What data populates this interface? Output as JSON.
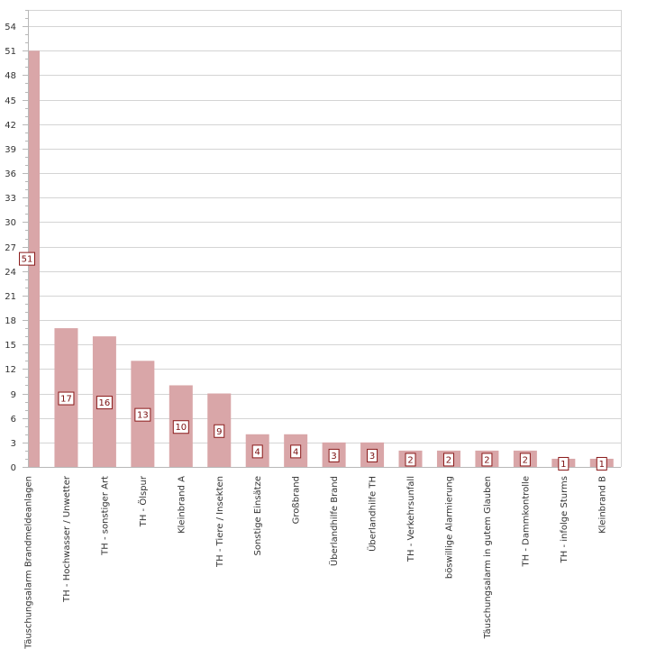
{
  "chart_data": {
    "type": "bar",
    "categories": [
      "Täuschungsalarm Brandmeldeanlagen",
      "TH - Hochwasser / Unwetter",
      "TH - sonstiger Art",
      "TH - Ölspur",
      "Kleinbrand A",
      "TH - Tiere / Insekten",
      "Sonstige Einsätze",
      "Großbrand",
      "Überlandhilfe Brand",
      "Überlandhilfe TH",
      "TH - Verkehrsunfall",
      "böswillige Alarmierung",
      "Täuschungsalarm in gutem Glauben",
      "TH - Dammkontrolle",
      "TH - infolge Sturms",
      "Kleinbrand B"
    ],
    "values": [
      51,
      17,
      16,
      13,
      10,
      9,
      4,
      4,
      3,
      3,
      2,
      2,
      2,
      2,
      1,
      1
    ],
    "ylim": [
      0,
      56
    ],
    "yticks": [
      0,
      3,
      6,
      9,
      12,
      15,
      18,
      21,
      24,
      27,
      30,
      33,
      36,
      39,
      42,
      45,
      48,
      51,
      54
    ],
    "grid": true,
    "legend": "none",
    "data_labels": true,
    "colors": {
      "bar": "#d9a6a8",
      "grid": "#d4d4d4",
      "axis": "#b8b8b8",
      "label_border": "#8a1a1a"
    }
  }
}
